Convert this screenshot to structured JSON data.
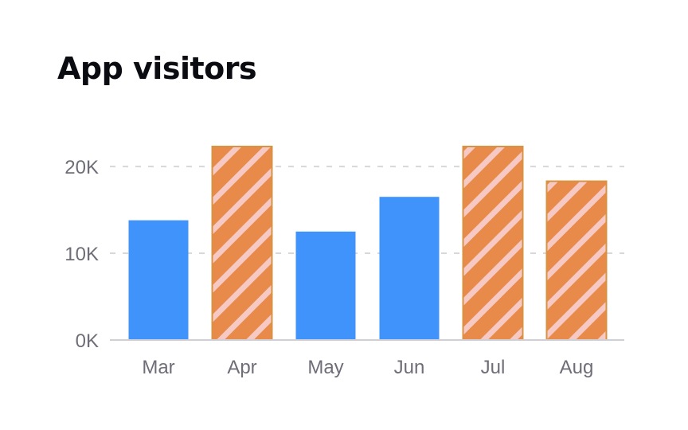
{
  "chart_data": {
    "type": "bar",
    "title": "App visitors",
    "categories": [
      "Mar",
      "Apr",
      "May",
      "Jun",
      "Jul",
      "Aug"
    ],
    "values": [
      13800,
      22300,
      12500,
      16500,
      22300,
      18300
    ],
    "styles": [
      "solid",
      "hatched",
      "solid",
      "solid",
      "hatched",
      "hatched"
    ],
    "ylim": [
      0,
      22300
    ],
    "yticks": [
      0,
      10000,
      20000
    ],
    "ytick_labels": [
      "0K",
      "10K",
      "20K"
    ],
    "grid": true,
    "legend": "none",
    "colors": {
      "solid": "#3f93fb",
      "hatched_base": "#e88a4a",
      "hatched_border": "#d89342",
      "hatched_stripe": "#f6c9c4",
      "grid": "#d7d7dc",
      "baseline": "#cfcfd4",
      "tick_text": "#6e6e78"
    }
  }
}
